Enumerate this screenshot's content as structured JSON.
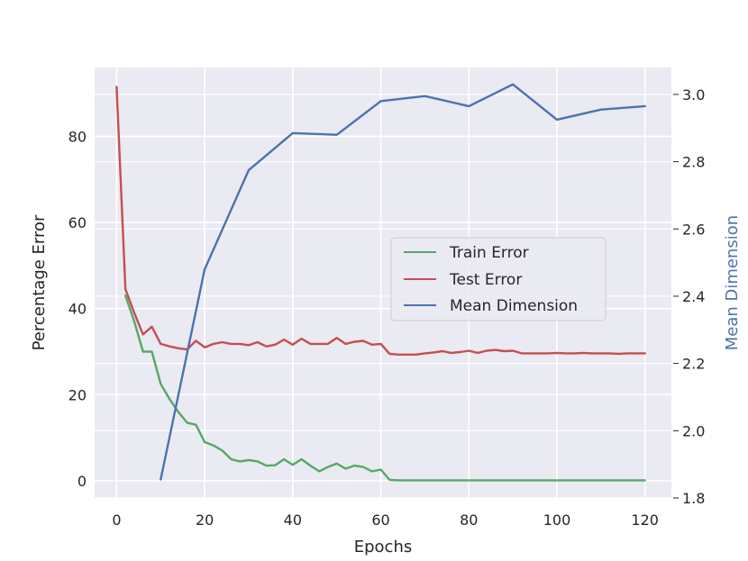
{
  "chart_data": {
    "type": "line",
    "title": "",
    "xlabel": "Epochs",
    "ylabel": "Percentage Error",
    "y2label": "Mean Dimension",
    "xlim": [
      -5,
      126
    ],
    "ylim": [
      -4,
      96
    ],
    "y2lim": [
      1.8,
      3.08
    ],
    "xticks": [
      0,
      20,
      40,
      60,
      80,
      100,
      120
    ],
    "yticks": [
      0,
      20,
      40,
      60,
      80
    ],
    "y2ticks": [
      1.8,
      2.0,
      2.2,
      2.4,
      2.6,
      2.8,
      3.0
    ],
    "grid": true,
    "legend_position": "center-right",
    "series": [
      {
        "name": "Train Error",
        "axis": "left",
        "color": "#55a868",
        "x": [
          2,
          4,
          6,
          8,
          10,
          12,
          14,
          16,
          18,
          20,
          22,
          24,
          26,
          28,
          30,
          32,
          34,
          36,
          38,
          40,
          42,
          44,
          46,
          48,
          50,
          52,
          54,
          56,
          58,
          60,
          62,
          64,
          66,
          68,
          70,
          72,
          74,
          76,
          78,
          80,
          82,
          84,
          86,
          88,
          90,
          92,
          94,
          96,
          98,
          100,
          102,
          104,
          106,
          108,
          110,
          112,
          114,
          116,
          118,
          120
        ],
        "values": [
          43,
          37,
          30,
          30,
          22.5,
          19,
          16,
          13.5,
          13,
          9,
          8.2,
          7,
          5,
          4.5,
          4.8,
          4.5,
          3.5,
          3.6,
          5,
          3.7,
          5,
          3.5,
          2.2,
          3.2,
          4,
          2.8,
          3.5,
          3.2,
          2.2,
          2.6,
          0.2,
          0.1,
          0.1,
          0.1,
          0.1,
          0.1,
          0.1,
          0.1,
          0.1,
          0.1,
          0.1,
          0.1,
          0.1,
          0.1,
          0.1,
          0.1,
          0.1,
          0.1,
          0.1,
          0.1,
          0.1,
          0.1,
          0.1,
          0.1,
          0.1,
          0.1,
          0.1,
          0.1,
          0.1,
          0.1
        ]
      },
      {
        "name": "Test Error",
        "axis": "left",
        "color": "#c44e52",
        "x": [
          0,
          2,
          4,
          6,
          8,
          10,
          12,
          14,
          16,
          18,
          20,
          22,
          24,
          26,
          28,
          30,
          32,
          34,
          36,
          38,
          40,
          42,
          44,
          46,
          48,
          50,
          52,
          54,
          56,
          58,
          60,
          62,
          64,
          66,
          68,
          70,
          72,
          74,
          76,
          78,
          80,
          82,
          84,
          86,
          88,
          90,
          92,
          94,
          96,
          98,
          100,
          102,
          104,
          106,
          108,
          110,
          112,
          114,
          116,
          118,
          120
        ],
        "values": [
          91.5,
          44.5,
          39,
          34,
          35.8,
          31.8,
          31.2,
          30.8,
          30.5,
          32.5,
          31,
          31.8,
          32.2,
          31.8,
          31.8,
          31.5,
          32.2,
          31.2,
          31.6,
          32.8,
          31.6,
          33,
          31.8,
          31.8,
          31.8,
          33.2,
          31.8,
          32.3,
          32.5,
          31.6,
          31.8,
          29.5,
          29.3,
          29.3,
          29.3,
          29.6,
          29.8,
          30.1,
          29.7,
          29.9,
          30.2,
          29.7,
          30.2,
          30.4,
          30.1,
          30.2,
          29.6,
          29.6,
          29.6,
          29.6,
          29.7,
          29.6,
          29.6,
          29.7,
          29.6,
          29.6,
          29.6,
          29.5,
          29.6,
          29.6,
          29.6
        ]
      },
      {
        "name": "Mean Dimension",
        "axis": "right",
        "color": "#4c72b0",
        "x": [
          10,
          20,
          30,
          40,
          50,
          60,
          70,
          80,
          90,
          100,
          110,
          120
        ],
        "values": [
          1.855,
          2.48,
          2.775,
          2.885,
          2.88,
          2.98,
          2.995,
          2.965,
          3.03,
          2.925,
          2.955,
          2.965
        ]
      }
    ]
  }
}
